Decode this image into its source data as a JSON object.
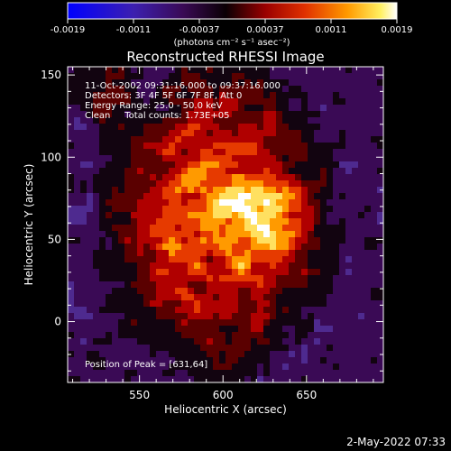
{
  "chart_data": {
    "type": "heatmap",
    "title": "Reconstructed RHESSI Image",
    "xlabel": "Heliocentric X (arcsec)",
    "ylabel": "Heliocentric Y (arcsec)",
    "x_ticks": [
      550,
      600,
      650
    ],
    "y_ticks": [
      0,
      50,
      100,
      150
    ],
    "xlim": [
      507,
      696
    ],
    "ylim": [
      -37,
      155
    ],
    "colorbar": {
      "ticks": [
        "-0.0019",
        "-0.0011",
        "-0.00037",
        "0.00037",
        "0.0011",
        "0.0019"
      ],
      "range": [
        -0.0019,
        0.0019
      ],
      "units_label": "(photons cm⁻² s⁻¹ asec⁻²)"
    },
    "annotations": {
      "time_range": "11-Oct-2002 09:31:16.000 to 09:37:16.000",
      "detectors": "Detectors: 3F 4F 5F 6F 7F 8F, Att 0",
      "energy_range": "Energy Range: 25.0 - 50.0 keV",
      "clean_line": "Clean     Total counts: 1.73E+05",
      "peak_position": "Position of Peak = [631,64]"
    },
    "peak": {
      "x": 631,
      "y": 64
    },
    "grid": false
  },
  "footer": {
    "timestamp": "2-May-2022 07:33"
  },
  "colors": {
    "background": "#000000",
    "foreground": "#ffffff",
    "colormap": [
      "#0a00ff",
      "#3c1fb0",
      "#4e2a8f",
      "#3a0a55",
      "#120410",
      "#5a0000",
      "#b00000",
      "#e63a00",
      "#ff9a00",
      "#ffe060",
      "#ffffff"
    ]
  }
}
